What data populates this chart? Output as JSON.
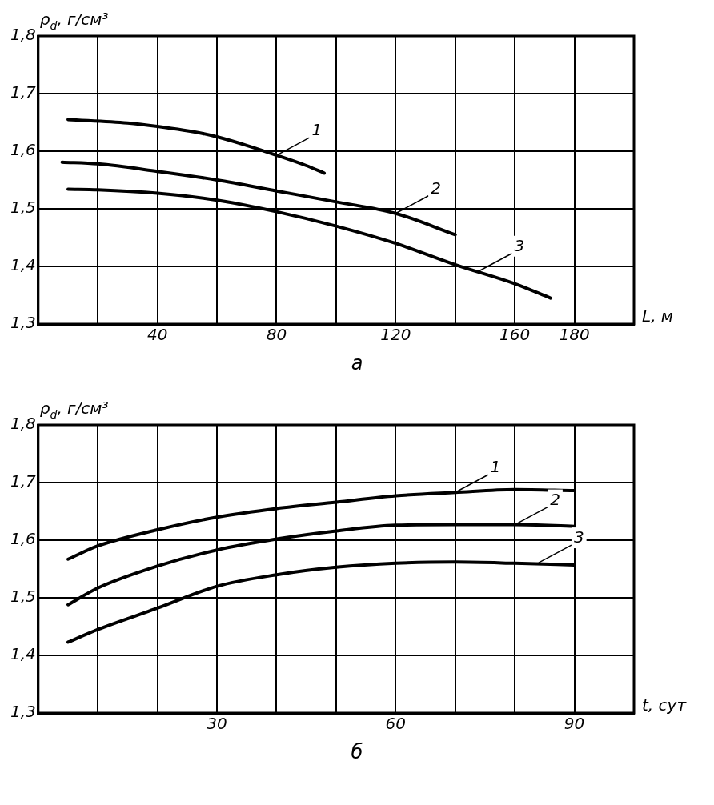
{
  "chart_data": [
    {
      "type": "line",
      "ylabel": "ρ$_{d}$, г/см³",
      "xlabel": "L, м",
      "grid": true,
      "legend": false,
      "marker": "none",
      "line_style": "solid",
      "xlim": [
        0,
        200
      ],
      "xticks": [
        {
          "value": 0,
          "label": null
        },
        {
          "value": 20,
          "label": null
        },
        40,
        {
          "value": 60,
          "label": null
        },
        80,
        {
          "value": 100,
          "label": null
        },
        120,
        {
          "value": 140,
          "label": null
        },
        160,
        180,
        {
          "value": 200,
          "label": null
        }
      ],
      "ylim": [
        1.3,
        1.8
      ],
      "yticks": [
        {
          "value": 1.3,
          "label": "1,3"
        },
        {
          "value": 1.4,
          "label": "1,4"
        },
        {
          "value": 1.5,
          "label": "1,5"
        },
        {
          "value": 1.6,
          "label": "1,6"
        },
        {
          "value": 1.7,
          "label": "1,7"
        },
        {
          "value": 1.8,
          "label": "1,8"
        }
      ],
      "series": [
        {
          "color": "#000000",
          "x": [
            10,
            30,
            40,
            55,
            60,
            70,
            80,
            90,
            96
          ],
          "values": [
            1.655,
            1.649,
            1.643,
            1.631,
            1.625,
            1.61,
            1.593,
            1.575,
            1.562
          ]
        },
        {
          "color": "#000000",
          "x": [
            8,
            20,
            40,
            60,
            80,
            100,
            120,
            140
          ],
          "values": [
            1.581,
            1.578,
            1.565,
            1.55,
            1.531,
            1.512,
            1.492,
            1.455
          ]
        },
        {
          "color": "#000000",
          "x": [
            10,
            20,
            40,
            60,
            80,
            100,
            120,
            140,
            160,
            172
          ],
          "values": [
            1.534,
            1.533,
            1.527,
            1.515,
            1.495,
            1.47,
            1.44,
            1.403,
            1.37,
            1.345
          ]
        }
      ],
      "annotations": [
        {
          "text": "1",
          "x": 80,
          "y": 1.593
        },
        {
          "text": "2",
          "x": 120,
          "y": 1.492
        },
        {
          "text": "3",
          "x": 148,
          "y": 1.392
        },
        "а"
      ]
    },
    {
      "type": "line",
      "ylabel": "ρ$_{d}$, г/см³",
      "xlabel": "t, сут",
      "grid": true,
      "legend": false,
      "marker": "none",
      "line_style": "solid",
      "xlim": [
        0,
        100
      ],
      "xticks": [
        {
          "value": 0,
          "label": null
        },
        {
          "value": 10,
          "label": null
        },
        {
          "value": 20,
          "label": null
        },
        30,
        {
          "value": 40,
          "label": null
        },
        {
          "value": 50,
          "label": null
        },
        60,
        {
          "value": 70,
          "label": null
        },
        {
          "value": 80,
          "label": null
        },
        90,
        {
          "value": 100,
          "label": null
        }
      ],
      "ylim": [
        1.3,
        1.8
      ],
      "yticks": [
        {
          "value": 1.3,
          "label": "1,3"
        },
        {
          "value": 1.4,
          "label": "1,4"
        },
        {
          "value": 1.5,
          "label": "1,5"
        },
        {
          "value": 1.6,
          "label": "1,6"
        },
        {
          "value": 1.7,
          "label": "1,7"
        },
        {
          "value": 1.8,
          "label": "1,8"
        }
      ],
      "series": [
        {
          "color": "#000000",
          "x": [
            5,
            10,
            20,
            30,
            40,
            50,
            60,
            70,
            80,
            90
          ],
          "values": [
            1.567,
            1.59,
            1.618,
            1.64,
            1.655,
            1.666,
            1.677,
            1.683,
            1.688,
            1.686
          ]
        },
        {
          "color": "#000000",
          "x": [
            5,
            10,
            20,
            30,
            40,
            50,
            60,
            70,
            80,
            90
          ],
          "values": [
            1.488,
            1.517,
            1.555,
            1.583,
            1.602,
            1.616,
            1.626,
            1.627,
            1.627,
            1.624
          ]
        },
        {
          "color": "#000000",
          "x": [
            5,
            10,
            20,
            30,
            40,
            50,
            60,
            70,
            80,
            90
          ],
          "values": [
            1.423,
            1.445,
            1.482,
            1.52,
            1.54,
            1.553,
            1.56,
            1.562,
            1.56,
            1.557
          ]
        }
      ],
      "annotations": [
        {
          "text": "1",
          "x": 70,
          "y": 1.683
        },
        {
          "text": "2",
          "x": 80,
          "y": 1.627
        },
        {
          "text": "3",
          "x": 84,
          "y": 1.561
        },
        "б"
      ]
    }
  ]
}
